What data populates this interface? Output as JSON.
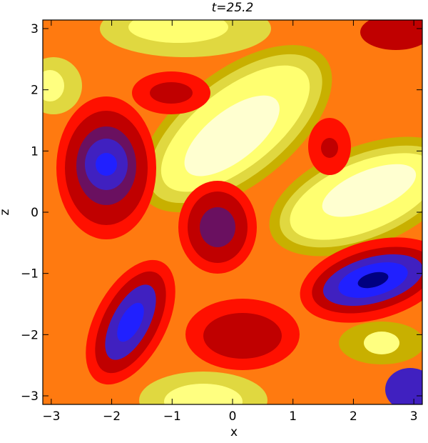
{
  "chart_data": {
    "type": "contour",
    "title": "t=25.2",
    "x_label": "x",
    "y_label": "z",
    "xlim": [
      -3.14,
      3.14
    ],
    "ylim": [
      -3.14,
      3.14
    ],
    "xticks": [
      {
        "value": -3,
        "label": "−3"
      },
      {
        "value": -2,
        "label": "−2"
      },
      {
        "value": -1,
        "label": "−1"
      },
      0,
      1,
      2,
      3
    ],
    "yticks": [
      {
        "value": -3,
        "label": "−3"
      },
      {
        "value": -2,
        "label": "−2"
      },
      {
        "value": -1,
        "label": "−1"
      },
      0,
      1,
      2,
      3
    ]
  }
}
